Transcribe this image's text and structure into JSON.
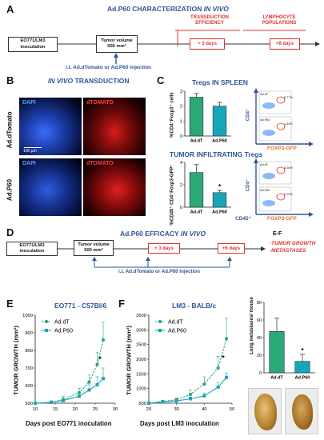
{
  "colors": {
    "title_blue": "#2f5597",
    "highlight_red": "#e03030",
    "series_green": "#2aa876",
    "series_teal": "#19a5b8",
    "dapi_blue": "#2b64ff",
    "tomato_red": "#ff2a2a"
  },
  "panel_a": {
    "label": "A",
    "title_main": "Ad.P60 CHARACTERIZATION",
    "title_ital": "IN VIVO",
    "inoculation": "EO771/LM3 inoculation",
    "tumor_volume_line1": "Tumor volume",
    "tumor_volume_line2": "500 mm³",
    "transduction_label": "TRANSDUCTION EFFICIENCY",
    "lymphocyte_label": "LYMPHOCYTE POPULATIONS",
    "plus3": "+ 3 days",
    "plus8": "+8 days",
    "injection_text": "i.t. Ad.dTomato or Ad.P60 injection"
  },
  "panel_b": {
    "label": "B",
    "title_ital": "IN VIVO",
    "title_rest": "TRANSDUCTION",
    "dapi": "DAPI",
    "dtomato": "dTOMATO",
    "row1": "Ad.dTomato",
    "row2": "Ad.P60",
    "scale": "100 µm"
  },
  "panel_c": {
    "label": "C",
    "title_tregs": "Tregs IN SPLEEN",
    "title_infil": "TUMOR INFILTRATING Tregs",
    "ylabel_top": "%CD4⁺Foxp3⁺ cells",
    "ylabel_bottom": "%CD45⁺ CD4⁺Foxp3-GFP⁺",
    "cd4": "CD4⁺",
    "foxp3": "FOXP3-GFP",
    "cd45": "CD45⁺",
    "addt_small": "Ad.dT",
    "adp60_small": "Ad.P60",
    "flow_vals": [
      "5.77%",
      "1.44%",
      "5.26%",
      "0.79%"
    ],
    "star": "*"
  },
  "panel_d": {
    "label": "D",
    "title_main": "Ad.P60 EFFICACY",
    "title_ital": "IN VIVO",
    "inoculation": "EO771/LM3 inoculation",
    "tumor_volume_line1": "Tumor volume",
    "tumor_volume_line2": "500 mm³",
    "plus3": "+ 3 days",
    "plus6": "+6 days",
    "ef_label": "E-F",
    "outcome1": "-TUMOR GROWTH",
    "outcome2": "-METASTASES",
    "injection_text": "i.t. Ad.dTomato or Ad.P60 injection"
  },
  "panel_e": {
    "label": "E",
    "title": "EO771 - C57Bl/6",
    "xlabel": "Days post EO771 inoculation",
    "ylabel": "TUMOR GROWTH (mm³)",
    "legend1": "Ad.dT",
    "legend2": "Ad.P60",
    "star": "*"
  },
  "panel_f": {
    "label": "F",
    "title": "LM3 - BALB/c",
    "xlabel": "Days post LM3 inoculation",
    "ylabel": "TUMOR GROWTH (mm³)",
    "legend1": "Ad.dT",
    "legend2": "Ad.P60",
    "star": "*",
    "meta_ylabel": "Lung metastases/ mouse",
    "meta_star": "*"
  },
  "chart_data": [
    {
      "type": "bar",
      "categories": [
        "Ad.dT",
        "Ad.P60"
      ],
      "values": [
        2.6,
        2.0
      ],
      "errors": [
        0.25,
        0.25
      ],
      "ylim": [
        0,
        3
      ],
      "yticks": [
        0,
        1,
        2,
        3
      ],
      "ylabel": "%CD4⁺Foxp3⁺ cells"
    },
    {
      "type": "bar",
      "categories": [
        "Ad.dT",
        "Ad.P60"
      ],
      "values": [
        3.1,
        1.3
      ],
      "errors": [
        0.7,
        0.2
      ],
      "ylim": [
        0,
        4
      ],
      "yticks": [
        0,
        2,
        4
      ],
      "ylabel": "%CD45⁺ CD4⁺Foxp3-GFP⁺"
    },
    {
      "type": "line",
      "xlim": [
        10,
        30
      ],
      "xticks": [
        10,
        15,
        20,
        25,
        30
      ],
      "ylim": [
        500,
        1000
      ],
      "yticks": [
        500,
        600,
        700,
        800,
        900,
        1000
      ],
      "series": [
        {
          "name": "Ad.dT",
          "x": [
            10,
            14,
            17,
            21,
            23.5,
            25.5,
            27
          ],
          "y": [
            500,
            505,
            520,
            560,
            620,
            720,
            860
          ],
          "err": [
            3,
            8,
            20,
            25,
            40,
            70,
            100
          ]
        },
        {
          "name": "Ad.P60",
          "x": [
            10,
            14,
            17,
            21,
            23.5,
            25.5,
            27
          ],
          "y": [
            500,
            505,
            515,
            540,
            575,
            605,
            640
          ],
          "err": [
            3,
            8,
            15,
            20,
            30,
            45,
            60
          ]
        }
      ]
    },
    {
      "type": "line",
      "xlim": [
        20,
        50
      ],
      "xticks": [
        20,
        30,
        40,
        50
      ],
      "ylim": [
        500,
        3500
      ],
      "yticks": [
        500,
        1000,
        1500,
        2000,
        2500,
        3000,
        3500
      ],
      "series": [
        {
          "name": "Ad.dT",
          "x": [
            20,
            25,
            30,
            35,
            40,
            45,
            48
          ],
          "y": [
            500,
            560,
            620,
            800,
            1150,
            1700,
            2700
          ],
          "err": [
            20,
            40,
            60,
            150,
            250,
            400,
            700
          ]
        },
        {
          "name": "Ad.P60",
          "x": [
            20,
            25,
            30,
            35,
            40,
            45,
            48
          ],
          "y": [
            500,
            540,
            580,
            650,
            750,
            1050,
            1380
          ],
          "err": [
            20,
            30,
            40,
            60,
            100,
            150,
            150
          ]
        }
      ]
    },
    {
      "type": "bar",
      "categories": [
        "Ad.dT",
        "Ad.P60"
      ],
      "values": [
        47,
        13
      ],
      "errors": [
        15,
        8
      ],
      "ylim": [
        0,
        80
      ],
      "yticks": [
        0,
        20,
        40,
        60,
        80
      ],
      "ylabel": "Lung metastases/ mouse"
    }
  ]
}
